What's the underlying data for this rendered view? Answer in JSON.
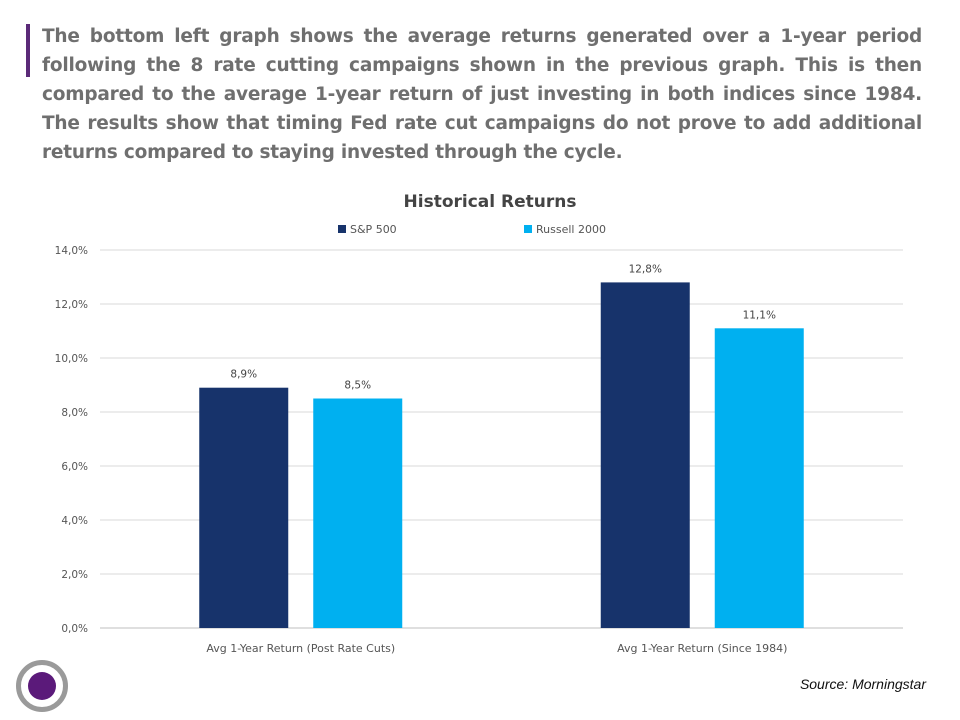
{
  "intro_text": "The bottom left graph shows the average returns generated over a 1-year period following the 8 rate cutting campaigns shown in the previous graph. This is then compared to the average 1-year return of just investing in both indices since 1984. The results show that timing Fed rate cut campaigns do not prove to add additional returns compared to staying invested through the cycle.",
  "source_text": "Source: Morningstar",
  "colors": {
    "accent": "#5b2a78",
    "sp500": "#17336b",
    "russell": "#00b0f0",
    "text": "#6f6f6f",
    "grid": "#d9d9d9"
  },
  "chart_data": {
    "type": "bar",
    "title": "Historical Returns",
    "categories": [
      "Avg 1-Year Return (Post Rate Cuts)",
      "Avg 1-Year Return (Since 1984)"
    ],
    "series": [
      {
        "name": "S&P 500",
        "values": [
          8.9,
          12.8
        ],
        "labels": [
          "8,9%",
          "12,8%"
        ]
      },
      {
        "name": "Russell 2000",
        "values": [
          8.5,
          11.1
        ],
        "labels": [
          "8,5%",
          "11,1%"
        ]
      }
    ],
    "ylim": [
      0,
      14
    ],
    "yticks": [
      "0,0%",
      "2,0%",
      "4,0%",
      "6,0%",
      "8,0%",
      "10,0%",
      "12,0%",
      "14,0%"
    ],
    "xlabel": "",
    "ylabel": "",
    "grid": true,
    "legend": "top"
  }
}
